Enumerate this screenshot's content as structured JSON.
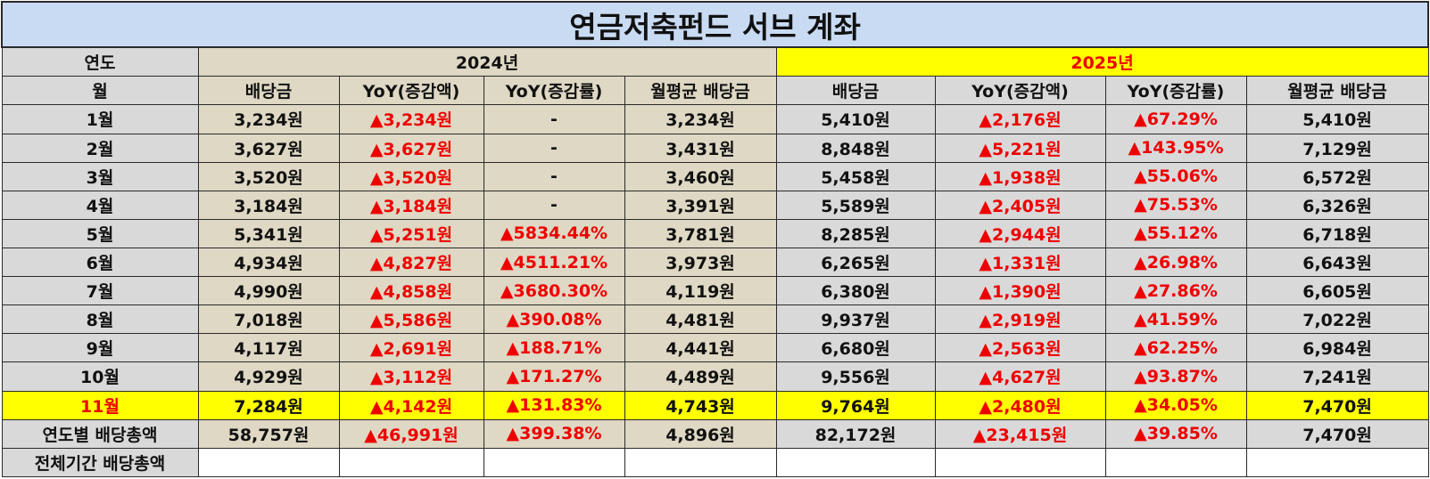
{
  "title": "연금저축펀드 서브 계좌",
  "labels": {
    "year": "연도",
    "month": "월",
    "annual_total": "연도별 배당총액",
    "all_period_total": "전체기간 배당총액"
  },
  "years": [
    "2024년",
    "2025년"
  ],
  "columns": [
    "배당금",
    "YoY(증감액)",
    "YoY(증감률)",
    "월평균 배당금"
  ],
  "rows": [
    {
      "month": "1월",
      "y2024": [
        "3,234원",
        "▲3,234원",
        "-",
        "3,234원"
      ],
      "y2025": [
        "5,410원",
        "▲2,176원",
        "▲67.29%",
        "5,410원"
      ]
    },
    {
      "month": "2월",
      "y2024": [
        "3,627원",
        "▲3,627원",
        "-",
        "3,431원"
      ],
      "y2025": [
        "8,848원",
        "▲5,221원",
        "▲143.95%",
        "7,129원"
      ]
    },
    {
      "month": "3월",
      "y2024": [
        "3,520원",
        "▲3,520원",
        "-",
        "3,460원"
      ],
      "y2025": [
        "5,458원",
        "▲1,938원",
        "▲55.06%",
        "6,572원"
      ]
    },
    {
      "month": "4월",
      "y2024": [
        "3,184원",
        "▲3,184원",
        "-",
        "3,391원"
      ],
      "y2025": [
        "5,589원",
        "▲2,405원",
        "▲75.53%",
        "6,326원"
      ]
    },
    {
      "month": "5월",
      "y2024": [
        "5,341원",
        "▲5,251원",
        "▲5834.44%",
        "3,781원"
      ],
      "y2025": [
        "8,285원",
        "▲2,944원",
        "▲55.12%",
        "6,718원"
      ]
    },
    {
      "month": "6월",
      "y2024": [
        "4,934원",
        "▲4,827원",
        "▲4511.21%",
        "3,973원"
      ],
      "y2025": [
        "6,265원",
        "▲1,331원",
        "▲26.98%",
        "6,643원"
      ]
    },
    {
      "month": "7월",
      "y2024": [
        "4,990원",
        "▲4,858원",
        "▲3680.30%",
        "4,119원"
      ],
      "y2025": [
        "6,380원",
        "▲1,390원",
        "▲27.86%",
        "6,605원"
      ]
    },
    {
      "month": "8월",
      "y2024": [
        "7,018원",
        "▲5,586원",
        "▲390.08%",
        "4,481원"
      ],
      "y2025": [
        "9,937원",
        "▲2,919원",
        "▲41.59%",
        "7,022원"
      ]
    },
    {
      "month": "9월",
      "y2024": [
        "4,117원",
        "▲2,691원",
        "▲188.71%",
        "4,441원"
      ],
      "y2025": [
        "6,680원",
        "▲2,563원",
        "▲62.25%",
        "6,984원"
      ]
    },
    {
      "month": "10월",
      "y2024": [
        "4,929원",
        "▲3,112원",
        "▲171.27%",
        "4,489원"
      ],
      "y2025": [
        "9,556원",
        "▲4,627원",
        "▲93.87%",
        "7,241원"
      ]
    },
    {
      "month": "11월",
      "y2024": [
        "7,284원",
        "▲4,142원",
        "▲131.83%",
        "4,743원"
      ],
      "y2025": [
        "9,764원",
        "▲2,480원",
        "▲34.05%",
        "7,470원"
      ]
    }
  ],
  "annual": {
    "y2024": [
      "58,757원",
      "▲46,991원",
      "▲399.38%",
      "4,896원"
    ],
    "y2025": [
      "82,172원",
      "▲23,415원",
      "▲39.85%",
      "7,470원"
    ]
  },
  "colors": {
    "title_bg": "#c9dbf3",
    "label_bg": "#d9d9d9",
    "tan_bg": "#ded8c4",
    "highlight": "#ffff00",
    "increase_red": "#ee0000"
  }
}
